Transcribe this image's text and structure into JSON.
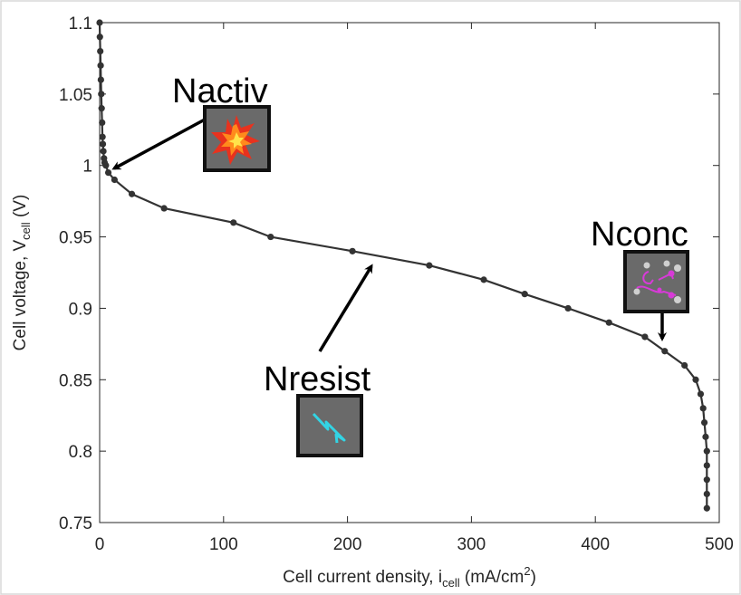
{
  "chart_data": {
    "type": "line",
    "xlabel": {
      "main": "Cell current density, i",
      "sub": "cell",
      "unit": " (mA/cm",
      "sup": "2",
      "end": ")"
    },
    "ylabel": {
      "main": "Cell voltage, V",
      "sub": "cell",
      "end": " (V)"
    },
    "xlim": [
      0,
      500
    ],
    "ylim": [
      0.75,
      1.1
    ],
    "xticks": [
      "0",
      "100",
      "200",
      "300",
      "400",
      "500"
    ],
    "yticks": [
      "0.75",
      "0.8",
      "0.85",
      "0.9",
      "0.95",
      "1",
      "1.05",
      "1.1"
    ],
    "grid": false,
    "series": [
      {
        "x": [
          0,
          0.2,
          0.5,
          0.8,
          1,
          1.3,
          1.6,
          2,
          2.3,
          2.6,
          3,
          3.5,
          4,
          5,
          7,
          12,
          26,
          52,
          108,
          138,
          204,
          266,
          310,
          343,
          378,
          411,
          440,
          456,
          472,
          481,
          485,
          487,
          488,
          489,
          490,
          490,
          490,
          490,
          490
        ],
        "y": [
          1.1,
          1.09,
          1.08,
          1.07,
          1.06,
          1.05,
          1.04,
          1.03,
          1.02,
          1.015,
          1.01,
          1.005,
          1.002,
          1.0,
          0.995,
          0.99,
          0.98,
          0.97,
          0.96,
          0.95,
          0.94,
          0.93,
          0.92,
          0.91,
          0.9,
          0.89,
          0.88,
          0.87,
          0.86,
          0.85,
          0.84,
          0.83,
          0.82,
          0.81,
          0.8,
          0.79,
          0.78,
          0.77,
          0.76
        ],
        "color": "#333333"
      }
    ],
    "annotations": [
      {
        "text": "Nactiv"
      },
      {
        "text": "Nresist"
      },
      {
        "text": "Nconc"
      }
    ]
  }
}
